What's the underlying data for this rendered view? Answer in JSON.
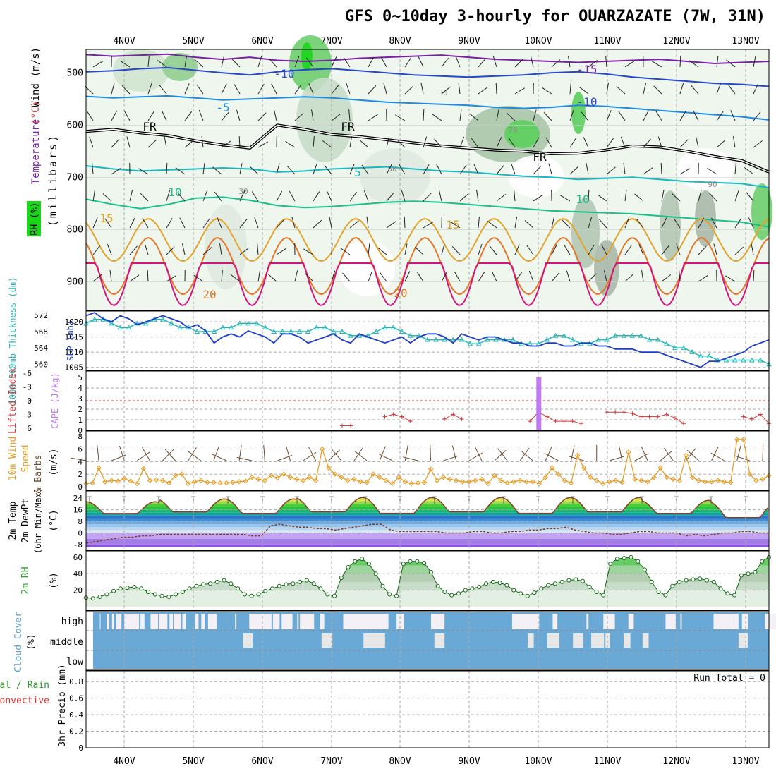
{
  "title": "GFS 0~10day 3-hourly for OUARZAZATE (7W, 31N)",
  "dates": [
    "4NOV",
    "5NOV",
    "6NOV",
    "7NOV",
    "8NOV",
    "9NOV",
    "10NOV",
    "11NOV",
    "12NOV",
    "13NOV"
  ],
  "colors": {
    "gridline": "#aaaaaa",
    "slp": "#1d3fc8",
    "thickness": "#27b6b6",
    "li": "#d33a3a",
    "cape": "#c07af2",
    "wind10": "#e69a1e",
    "barb": "#6b4a2e",
    "rh": "#2e9a2e",
    "cloud": "#6aa9d6",
    "cloudClear": "#f3f0f6",
    "freezing": "#000000",
    "temp_m15": "#7a1fa8",
    "temp_m10": "#2747c7",
    "temp_m5": "#1b8ae0",
    "temp_5": "#18b8c0",
    "temp_10": "#1bbf8a",
    "temp_15": "#e2a32d",
    "temp_20": "#e2772a",
    "temp_25": "#d0157c"
  },
  "panels": {
    "upper": {
      "left_labels": [
        "Wind",
        "(m/s)",
        "Temperature",
        "(°C)",
        "RH (%)",
        "(millibars)"
      ],
      "ylabel": "millibars",
      "pressure_ticks": [
        "500",
        "600",
        "700",
        "800",
        "900"
      ],
      "contour_labels": [
        "-15",
        "-10",
        "-5",
        "FR",
        "5",
        "10",
        "15",
        "20",
        "30",
        "50",
        "70",
        "90"
      ],
      "temp_lines": [
        {
          "label": "-15",
          "color": "temp_m15",
          "p": [
            465,
            468,
            466,
            464,
            470,
            474,
            470,
            476,
            478,
            476,
            472,
            470,
            468,
            466,
            470,
            474,
            476,
            478,
            480,
            478,
            476,
            474,
            478,
            482,
            480,
            478
          ]
        },
        {
          "label": "-10",
          "color": "temp_m10",
          "p": [
            498,
            496,
            492,
            490,
            495,
            500,
            504,
            498,
            494,
            492,
            496,
            500,
            504,
            506,
            508,
            506,
            504,
            500,
            498,
            502,
            508,
            512,
            516,
            520,
            522,
            526
          ]
        },
        {
          "label": "-5",
          "color": "temp_m5",
          "p": [
            545,
            548,
            546,
            544,
            548,
            552,
            550,
            548,
            546,
            548,
            552,
            556,
            558,
            560,
            562,
            566,
            568,
            566,
            562,
            564,
            568,
            572,
            576,
            580,
            584,
            590
          ]
        },
        {
          "label": "FR",
          "color": "freezing",
          "p": [
            612,
            608,
            615,
            620,
            630,
            638,
            644,
            600,
            608,
            618,
            622,
            628,
            634,
            640,
            644,
            648,
            650,
            655,
            654,
            648,
            640,
            642,
            650,
            660,
            668,
            690
          ]
        },
        {
          "label": "5",
          "color": "temp_5",
          "p": [
            678,
            684,
            688,
            686,
            684,
            682,
            684,
            690,
            688,
            684,
            682,
            680,
            684,
            688,
            690,
            694,
            698,
            700,
            704,
            702,
            700,
            704,
            708,
            710,
            712,
            720
          ]
        },
        {
          "label": "10",
          "color": "temp_10",
          "p": [
            742,
            752,
            760,
            752,
            740,
            738,
            744,
            754,
            758,
            756,
            752,
            748,
            746,
            748,
            752,
            756,
            760,
            764,
            766,
            768,
            770,
            774,
            778,
            782,
            786,
            795
          ]
        }
      ],
      "diurnal_lines": [
        {
          "label": "15",
          "color": "temp_15",
          "base": 820,
          "amp": 30
        },
        {
          "label": "20",
          "color": "temp_20",
          "base": 870,
          "amp": 40
        },
        {
          "label": "25",
          "color": "temp_25",
          "base": 905,
          "amp": 25
        }
      ]
    },
    "slp": {
      "ylabel_left": "1000-500mb Thickness (dm)",
      "ylabel_right": "SLP (mb)",
      "thickness_ticks": [
        "572",
        "568",
        "564",
        "560"
      ],
      "slp_ticks": [
        "1020",
        "1015",
        "1010",
        "1005"
      ],
      "slp_values": [
        1022,
        1023,
        1021,
        1020,
        1022,
        1021,
        1019,
        1020,
        1021,
        1022,
        1021,
        1020,
        1018,
        1019,
        1017,
        1013,
        1015,
        1016,
        1015,
        1017,
        1016,
        1015,
        1013,
        1016,
        1016,
        1015,
        1013,
        1014,
        1015,
        1016,
        1014,
        1013,
        1016,
        1015,
        1014,
        1013,
        1014,
        1015,
        1013,
        1015,
        1016,
        1016,
        1015,
        1013,
        1016,
        1015,
        1014,
        1015,
        1015,
        1014,
        1013,
        1013,
        1012,
        1012,
        1013,
        1013,
        1012,
        1012,
        1013,
        1013,
        1012,
        1012,
        1011,
        1011,
        1011,
        1010,
        1010,
        1010,
        1009,
        1008,
        1007,
        1006,
        1005,
        1007,
        1007,
        1008,
        1009,
        1010,
        1012,
        1013,
        1014
      ],
      "thickness_values": [
        570,
        571,
        571,
        570,
        569,
        569,
        570,
        570,
        571,
        571,
        570,
        569,
        569,
        568,
        568,
        568,
        569,
        569,
        570,
        570,
        570,
        569,
        568,
        568,
        568,
        568,
        568,
        569,
        569,
        568,
        568,
        567,
        567,
        567,
        568,
        569,
        569,
        568,
        567,
        567,
        566,
        566,
        566,
        566,
        566,
        565,
        565,
        566,
        566,
        566,
        566,
        565,
        565,
        565,
        566,
        567,
        567,
        566,
        565,
        565,
        566,
        566,
        567,
        567,
        567,
        567,
        566,
        566,
        565,
        564,
        564,
        563,
        562,
        562,
        561,
        561,
        561,
        561,
        561,
        561,
        560
      ]
    },
    "cape": {
      "ylabel_left": "Lifted Index",
      "ylabel_right": "CAPE (J/kg)",
      "li_ticks": [
        "-6",
        "-3",
        "0",
        "3",
        "6"
      ],
      "cape_ticks": [
        "5",
        "4",
        "3",
        "2",
        "1",
        "0"
      ],
      "li_values": [
        null,
        null,
        null,
        null,
        null,
        null,
        null,
        null,
        null,
        null,
        null,
        null,
        null,
        null,
        null,
        null,
        null,
        null,
        null,
        null,
        null,
        null,
        null,
        null,
        null,
        null,
        null,
        null,
        null,
        null,
        5.5,
        5.5,
        null,
        null,
        null,
        3.5,
        3.0,
        3.5,
        4.5,
        null,
        null,
        null,
        4.0,
        3.0,
        4.0,
        null,
        null,
        null,
        null,
        null,
        null,
        null,
        4.5,
        2.5,
        3.5,
        4.5,
        4.5,
        4.5,
        5.0,
        null,
        null,
        2.5,
        2.5,
        2.5,
        2.8,
        3.5,
        3.5,
        3.5,
        3.0,
        3.8,
        5.0,
        null,
        null,
        null,
        null,
        null,
        null,
        3.5,
        4.0,
        3.0,
        5.0
      ],
      "cape_bar": {
        "index": 53,
        "value": 5.0
      }
    },
    "wind10": {
      "ylabel": "10m Wind Speed (m/s) & Barbs",
      "ticks": [
        "8",
        "6",
        "4",
        "2",
        "0"
      ],
      "values": [
        0.5,
        0.6,
        3.0,
        0.8,
        1.0,
        0.9,
        1.3,
        0.9,
        0.5,
        2.9,
        1.0,
        1.1,
        1.0,
        0.6,
        1.8,
        2.0,
        0.5,
        0.8,
        1.0,
        0.7,
        0.7,
        0.6,
        0.6,
        0.7,
        0.8,
        0.9,
        1.5,
        1.2,
        1.0,
        1.8,
        1.4,
        2.0,
        1.5,
        1.2,
        1.0,
        1.5,
        1.0,
        6.0,
        3.0,
        2.0,
        1.5,
        1.0,
        1.2,
        0.8,
        0.7,
        2.0,
        1.5,
        1.0,
        0.5,
        1.5,
        0.8,
        0.5,
        0.6,
        0.7,
        2.8,
        1.0,
        1.5,
        1.2,
        1.0,
        0.8,
        0.8,
        1.0,
        1.2,
        0.5,
        1.8,
        1.0,
        0.6,
        0.8,
        1.0,
        0.8,
        0.8,
        0.5,
        1.5,
        3.0,
        2.0,
        1.0,
        0.6,
        5.0,
        3.0,
        1.5,
        1.0,
        0.5,
        0.8,
        1.0,
        0.7,
        5.5,
        1.2,
        1.0,
        0.8,
        1.5,
        3.0,
        1.5,
        1.2,
        1.0,
        5.0,
        1.5,
        1.0,
        0.8,
        0.8,
        1.0,
        0.8,
        0.7,
        7.5,
        7.5,
        2.0,
        1.0,
        1.2,
        1.8
      ]
    },
    "temp2m": {
      "ylabel": "2m Temp / 2m DewPt (6hr Min/Max) (°C)",
      "ticks": [
        "24",
        "16",
        "8",
        "0",
        "-8"
      ],
      "temp_max_days": [
        22,
        24,
        24,
        25,
        25,
        25,
        25,
        25,
        23,
        22
      ],
      "temp_min_days": [
        13,
        14,
        13,
        14,
        13,
        14,
        13,
        14,
        13,
        10
      ],
      "dewpt_values": [
        -7,
        -6,
        -5,
        -4,
        -3,
        -3,
        -2,
        -2,
        -1,
        -1,
        -1,
        -1,
        -1,
        -1,
        -1,
        -1,
        -1,
        -1,
        -2,
        -2,
        5,
        6,
        5,
        4,
        4,
        3,
        3,
        2,
        3,
        4,
        5,
        6,
        6,
        2,
        1,
        1,
        1,
        1,
        1,
        0,
        0,
        0,
        1,
        1,
        0,
        0,
        1,
        1,
        2,
        2,
        3,
        3,
        4,
        2,
        1,
        0,
        0,
        -1,
        -1,
        0,
        1,
        1,
        0,
        0,
        0,
        -2,
        -1,
        -2,
        -1,
        0,
        0,
        1,
        1,
        0,
        0
      ]
    },
    "rh2m": {
      "ylabel": "2m RH (%)",
      "ticks": [
        "60",
        "40",
        "20"
      ],
      "values": [
        11,
        10,
        12,
        15,
        19,
        22,
        23,
        24,
        22,
        18,
        15,
        13,
        12,
        15,
        18,
        22,
        25,
        27,
        28,
        30,
        32,
        28,
        22,
        15,
        13,
        15,
        19,
        22,
        25,
        27,
        28,
        30,
        32,
        28,
        22,
        15,
        13,
        35,
        48,
        55,
        58,
        52,
        40,
        25,
        15,
        13,
        52,
        55,
        55,
        53,
        42,
        25,
        18,
        14,
        16,
        20,
        22,
        24,
        28,
        30,
        29,
        26,
        20,
        16,
        13,
        17,
        22,
        26,
        28,
        30,
        32,
        33,
        31,
        24,
        18,
        14,
        52,
        58,
        59,
        60,
        55,
        45,
        30,
        18,
        14,
        25,
        30,
        32,
        33,
        34,
        32,
        30,
        22,
        16,
        14,
        38,
        40,
        42,
        55,
        60
      ]
    },
    "cloud": {
      "ylabel": "Cloud Cover (%)",
      "levels": [
        "high",
        "middle",
        "low"
      ],
      "high_clear_ranges": [
        [
          10,
          11
        ],
        [
          20,
          24
        ],
        [
          28,
          31
        ],
        [
          34,
          42
        ],
        [
          46,
          68
        ],
        [
          70,
          72
        ],
        [
          72,
          76
        ],
        [
          85,
          96
        ],
        [
          97,
          110
        ],
        [
          113,
          118
        ],
        [
          119,
          130
        ],
        [
          132,
          137
        ],
        [
          151,
          156
        ],
        [
          160,
          165
        ],
        [
          170,
          183
        ],
        [
          210,
          212
        ],
        [
          231,
          264
        ],
        [
          266,
          276
        ],
        [
          279,
          295
        ],
        [
          302,
          304
        ],
        [
          306,
          327
        ],
        [
          336,
          342
        ],
        [
          370,
          437
        ],
        [
          449,
          460
        ],
        [
          500,
          520
        ],
        [
          620,
          660
        ],
        [
          680,
          687
        ],
        [
          730,
          733
        ],
        [
          755,
          772
        ],
        [
          792,
          800
        ],
        [
          847,
          862
        ],
        [
          869,
          871
        ],
        [
          918,
          955
        ],
        [
          960,
          969
        ],
        [
          994,
          1004
        ],
        [
          1002,
          1014
        ]
      ],
      "mid_clear_ranges": [
        [
          222,
          236
        ],
        [
          338,
          354
        ],
        [
          400,
          432
        ],
        [
          505,
          520
        ],
        [
          643,
          652
        ],
        [
          672,
          690
        ],
        [
          710,
          725
        ],
        [
          737,
          756
        ],
        [
          758,
          765
        ],
        [
          785,
          795
        ],
        [
          813,
          822
        ],
        [
          955,
          969
        ]
      ],
      "run_total": "Run Total = 0"
    },
    "precip": {
      "ylabel_left": "Total / Rain",
      "ylabel_left2": "Convective",
      "ylabel": "3hr Precip (mm)",
      "ticks": [
        "0.8",
        "0.6",
        "0.4",
        "0.2",
        "0"
      ]
    }
  },
  "chart_data": [
    {
      "type": "line",
      "title": "GFS 0~10day 3-hourly for OUARZAZATE (7W, 31N)",
      "panel": "SLP / 1000-500mb Thickness",
      "x": "3-hourly steps 4NOV–13NOV",
      "series": [
        {
          "name": "SLP (mb)",
          "ylim": [
            1005,
            1023
          ]
        },
        {
          "name": "1000-500mb Thickness (dm)",
          "ylim": [
            559,
            572
          ]
        }
      ]
    },
    {
      "type": "line",
      "panel": "Lifted Index / CAPE",
      "series": [
        {
          "name": "Lifted Index",
          "ylim": [
            -6,
            6
          ]
        },
        {
          "name": "CAPE (J/kg)",
          "ylim": [
            0,
            5
          ]
        }
      ]
    },
    {
      "type": "line",
      "panel": "10m Wind Speed",
      "series": [
        {
          "name": "10m Wind Speed (m/s)",
          "ylim": [
            0,
            8
          ]
        }
      ]
    },
    {
      "type": "area",
      "panel": "2m Temp / DewPt",
      "series": [
        {
          "name": "2m Temp (°C)",
          "ylim": [
            -8,
            28
          ]
        },
        {
          "name": "2m DewPt (°C)"
        }
      ]
    },
    {
      "type": "area",
      "panel": "2m RH",
      "series": [
        {
          "name": "2m RH (%)",
          "ylim": [
            0,
            65
          ]
        }
      ]
    },
    {
      "type": "bar",
      "panel": "3hr Precip",
      "series": [
        {
          "name": "Total / Rain",
          "values": []
        },
        {
          "name": "Convective",
          "values": []
        }
      ],
      "ylim": [
        0,
        0.9
      ],
      "annotation": "Run Total = 0"
    }
  ]
}
